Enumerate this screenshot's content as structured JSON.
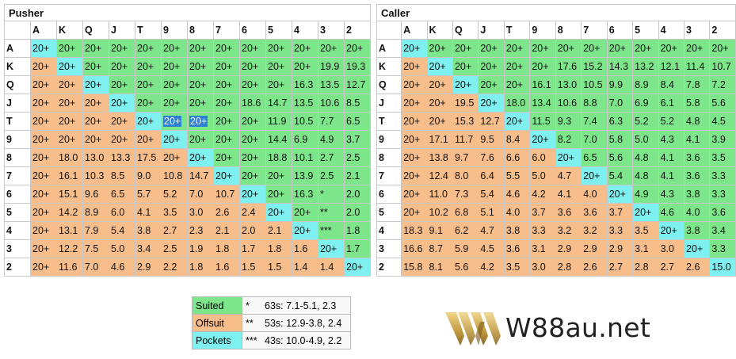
{
  "ranks": [
    "A",
    "K",
    "Q",
    "J",
    "T",
    "9",
    "8",
    "7",
    "6",
    "5",
    "4",
    "3",
    "2"
  ],
  "pusher": {
    "title": "Pusher",
    "rows": [
      [
        "20+",
        "20+",
        "20+",
        "20+",
        "20+",
        "20+",
        "20+",
        "20+",
        "20+",
        "20+",
        "20+",
        "20+",
        "20+"
      ],
      [
        "20+",
        "20+",
        "20+",
        "20+",
        "20+",
        "20+",
        "20+",
        "20+",
        "20+",
        "20+",
        "20+",
        "19.9",
        "19.3"
      ],
      [
        "20+",
        "20+",
        "20+",
        "20+",
        "20+",
        "20+",
        "20+",
        "20+",
        "20+",
        "20+",
        "16.3",
        "13.5",
        "12.7"
      ],
      [
        "20+",
        "20+",
        "20+",
        "20+",
        "20+",
        "20+",
        "20+",
        "20+",
        "18.6",
        "14.7",
        "13.5",
        "10.6",
        "8.5"
      ],
      [
        "20+",
        "20+",
        "20+",
        "20+",
        "20+",
        "20+",
        "20+",
        "20+",
        "20+",
        "11.9",
        "10.5",
        "7.7",
        "6.5"
      ],
      [
        "20+",
        "20+",
        "20+",
        "20+",
        "20+",
        "20+",
        "20+",
        "20+",
        "20+",
        "14.4",
        "6.9",
        "4.9",
        "3.7"
      ],
      [
        "20+",
        "18.0",
        "13.0",
        "13.3",
        "17.5",
        "20+",
        "20+",
        "20+",
        "20+",
        "18.8",
        "10.1",
        "2.7",
        "2.5"
      ],
      [
        "20+",
        "16.1",
        "10.3",
        "8.5",
        "9.0",
        "10.8",
        "14.7",
        "20+",
        "20+",
        "20+",
        "13.9",
        "2.5",
        "2.1"
      ],
      [
        "20+",
        "15.1",
        "9.6",
        "6.5",
        "5.7",
        "5.2",
        "7.0",
        "10.7",
        "20+",
        "20+",
        "16.3",
        "*",
        "2.0"
      ],
      [
        "20+",
        "14.2",
        "8.9",
        "6.0",
        "4.1",
        "3.5",
        "3.0",
        "2.6",
        "2.4",
        "20+",
        "20+",
        "**",
        "2.0"
      ],
      [
        "20+",
        "13.1",
        "7.9",
        "5.4",
        "3.8",
        "2.7",
        "2.3",
        "2.1",
        "2.0",
        "2.1",
        "20+",
        "***",
        "1.8"
      ],
      [
        "20+",
        "12.2",
        "7.5",
        "5.0",
        "3.4",
        "2.5",
        "1.9",
        "1.8",
        "1.7",
        "1.8",
        "1.6",
        "20+",
        "1.7"
      ],
      [
        "20+",
        "11.6",
        "7.0",
        "4.6",
        "2.9",
        "2.2",
        "1.8",
        "1.6",
        "1.5",
        "1.5",
        "1.4",
        "1.4",
        "20+"
      ]
    ]
  },
  "caller": {
    "title": "Caller",
    "rows": [
      [
        "20+",
        "20+",
        "20+",
        "20+",
        "20+",
        "20+",
        "20+",
        "20+",
        "20+",
        "20+",
        "20+",
        "20+",
        "20+"
      ],
      [
        "20+",
        "20+",
        "20+",
        "20+",
        "20+",
        "20+",
        "17.6",
        "15.2",
        "14.3",
        "13.2",
        "12.1",
        "11.4",
        "10.7"
      ],
      [
        "20+",
        "20+",
        "20+",
        "20+",
        "20+",
        "16.1",
        "13.0",
        "10.5",
        "9.9",
        "8.9",
        "8.4",
        "7.8",
        "7.2"
      ],
      [
        "20+",
        "20+",
        "19.5",
        "20+",
        "18.0",
        "13.4",
        "10.6",
        "8.8",
        "7.0",
        "6.9",
        "6.1",
        "5.8",
        "5.6"
      ],
      [
        "20+",
        "20+",
        "15.3",
        "12.7",
        "20+",
        "11.5",
        "9.3",
        "7.4",
        "6.3",
        "5.2",
        "5.2",
        "4.8",
        "4.5"
      ],
      [
        "20+",
        "17.1",
        "11.7",
        "9.5",
        "8.4",
        "20+",
        "8.2",
        "7.0",
        "5.8",
        "5.0",
        "4.3",
        "4.1",
        "3.9"
      ],
      [
        "20+",
        "13.8",
        "9.7",
        "7.6",
        "6.6",
        "6.0",
        "20+",
        "6.5",
        "5.6",
        "4.8",
        "4.1",
        "3.6",
        "3.5"
      ],
      [
        "20+",
        "12.4",
        "8.0",
        "6.4",
        "5.5",
        "5.0",
        "4.7",
        "20+",
        "5.4",
        "4.8",
        "4.1",
        "3.6",
        "3.3"
      ],
      [
        "20+",
        "11.0",
        "7.3",
        "5.4",
        "4.6",
        "4.2",
        "4.1",
        "4.0",
        "20+",
        "4.9",
        "4.3",
        "3.8",
        "3.3"
      ],
      [
        "20+",
        "10.2",
        "6.8",
        "5.1",
        "4.0",
        "3.7",
        "3.6",
        "3.6",
        "3.7",
        "20+",
        "4.6",
        "4.0",
        "3.6"
      ],
      [
        "18.3",
        "9.1",
        "6.2",
        "4.7",
        "3.8",
        "3.3",
        "3.2",
        "3.2",
        "3.3",
        "3.5",
        "20+",
        "3.8",
        "3.4"
      ],
      [
        "16.6",
        "8.7",
        "5.9",
        "4.5",
        "3.6",
        "3.1",
        "2.9",
        "2.9",
        "2.9",
        "3.1",
        "3.0",
        "20+",
        "3.3"
      ],
      [
        "15.8",
        "8.1",
        "5.6",
        "4.2",
        "3.5",
        "3.0",
        "2.8",
        "2.6",
        "2.7",
        "2.8",
        "2.7",
        "2.6",
        "15.0"
      ]
    ]
  },
  "legend": [
    {
      "label": "Suited",
      "type": "suited",
      "mark": "*",
      "desc": "63s: 7.1-5.1, 2.3"
    },
    {
      "label": "Offsuit",
      "type": "offsuit",
      "mark": "**",
      "desc": "53s: 12.9-3.8, 2.4"
    },
    {
      "label": "Pockets",
      "type": "pockets",
      "mark": "***",
      "desc": "43s: 10.0-4.9, 2.2"
    }
  ],
  "brand": {
    "logo_text": "W88au.net",
    "gold": "#c9a24a"
  },
  "colors": {
    "suited": "#7ee68a",
    "offsuit": "#f7be8c",
    "pockets": "#7ef0f0",
    "highlight": "#2d80d6"
  }
}
